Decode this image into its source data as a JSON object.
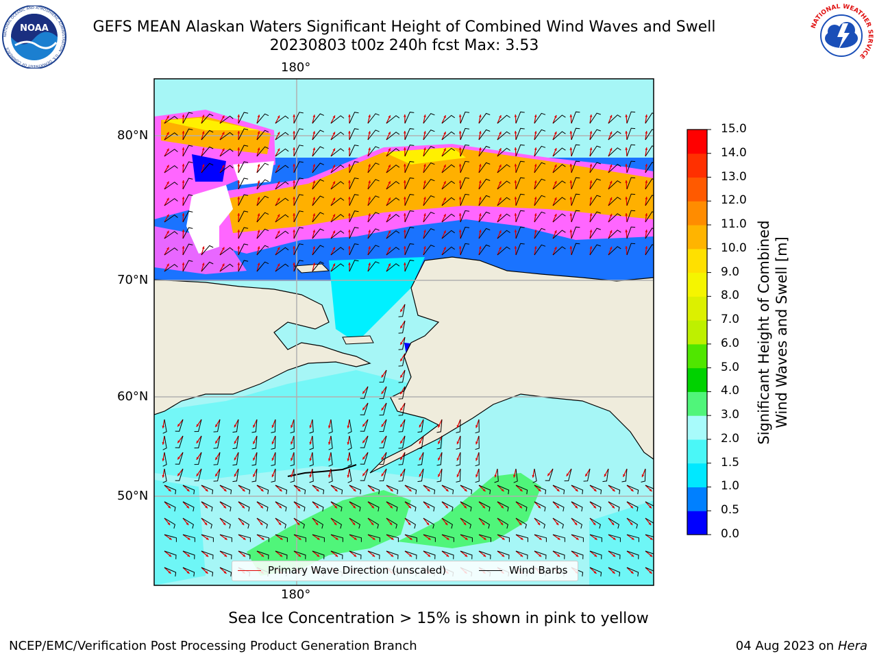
{
  "title_line1": "GEFS MEAN Alaskan Waters Significant Height of Combined Wind Waves and Swell",
  "title_line2": "20230803 t00z 240h fcst   Max: 3.53",
  "logos": {
    "left_name": "NOAA",
    "left_ring_text": "NATIONAL OCEANIC AND ATMOSPHERIC ADMINISTRATION · U.S. DEPARTMENT OF COMMERCE",
    "right_ring_text": "NATIONAL WEATHER SERVICE"
  },
  "map": {
    "longitude_label_top": "180°",
    "longitude_label_bottom": "180°",
    "latitude_labels": [
      "80°N",
      "70°N",
      "60°N",
      "50°N"
    ],
    "colors": {
      "land": "#efecdc",
      "ocean_base": "#a6f6f6",
      "ice_pink": "#ff66ff",
      "ice_orange": "#ffb000",
      "ice_yellow": "#fff000",
      "wave_direction": "#e00000",
      "wind_barb": "#000000",
      "gridline": "#b0b0b0"
    }
  },
  "legend": {
    "primary_wave_direction": "Primary Wave Direction (unscaled)",
    "wind_barbs": "Wind Barbs"
  },
  "colorbar": {
    "title": "Significant Height of Combined Wind Waves and Swell [m]",
    "tick_labels": [
      "0.0",
      "0.5",
      "1.0",
      "1.5",
      "2.0",
      "3.0",
      "4.0",
      "5.0",
      "6.0",
      "7.0",
      "8.0",
      "9.0",
      "10.0",
      "11.0",
      "12.0",
      "13.0",
      "14.0",
      "15.0"
    ],
    "colors": [
      "#0000ff",
      "#0080ff",
      "#00e8ff",
      "#4af7f7",
      "#a8fbfb",
      "#50f57a",
      "#00d200",
      "#50e600",
      "#bef000",
      "#dcf000",
      "#f5f500",
      "#ffe000",
      "#ffb400",
      "#ff8c00",
      "#ff5a00",
      "#ff3000",
      "#ff0000"
    ]
  },
  "sea_ice_note": "Sea Ice Concentration > 15% is shown in pink to yellow",
  "footer": {
    "left": "NCEP/EMC/Verification Post Processing Product Generation Branch",
    "right_date": "04 Aug 2023 on",
    "right_host": "Hera"
  }
}
